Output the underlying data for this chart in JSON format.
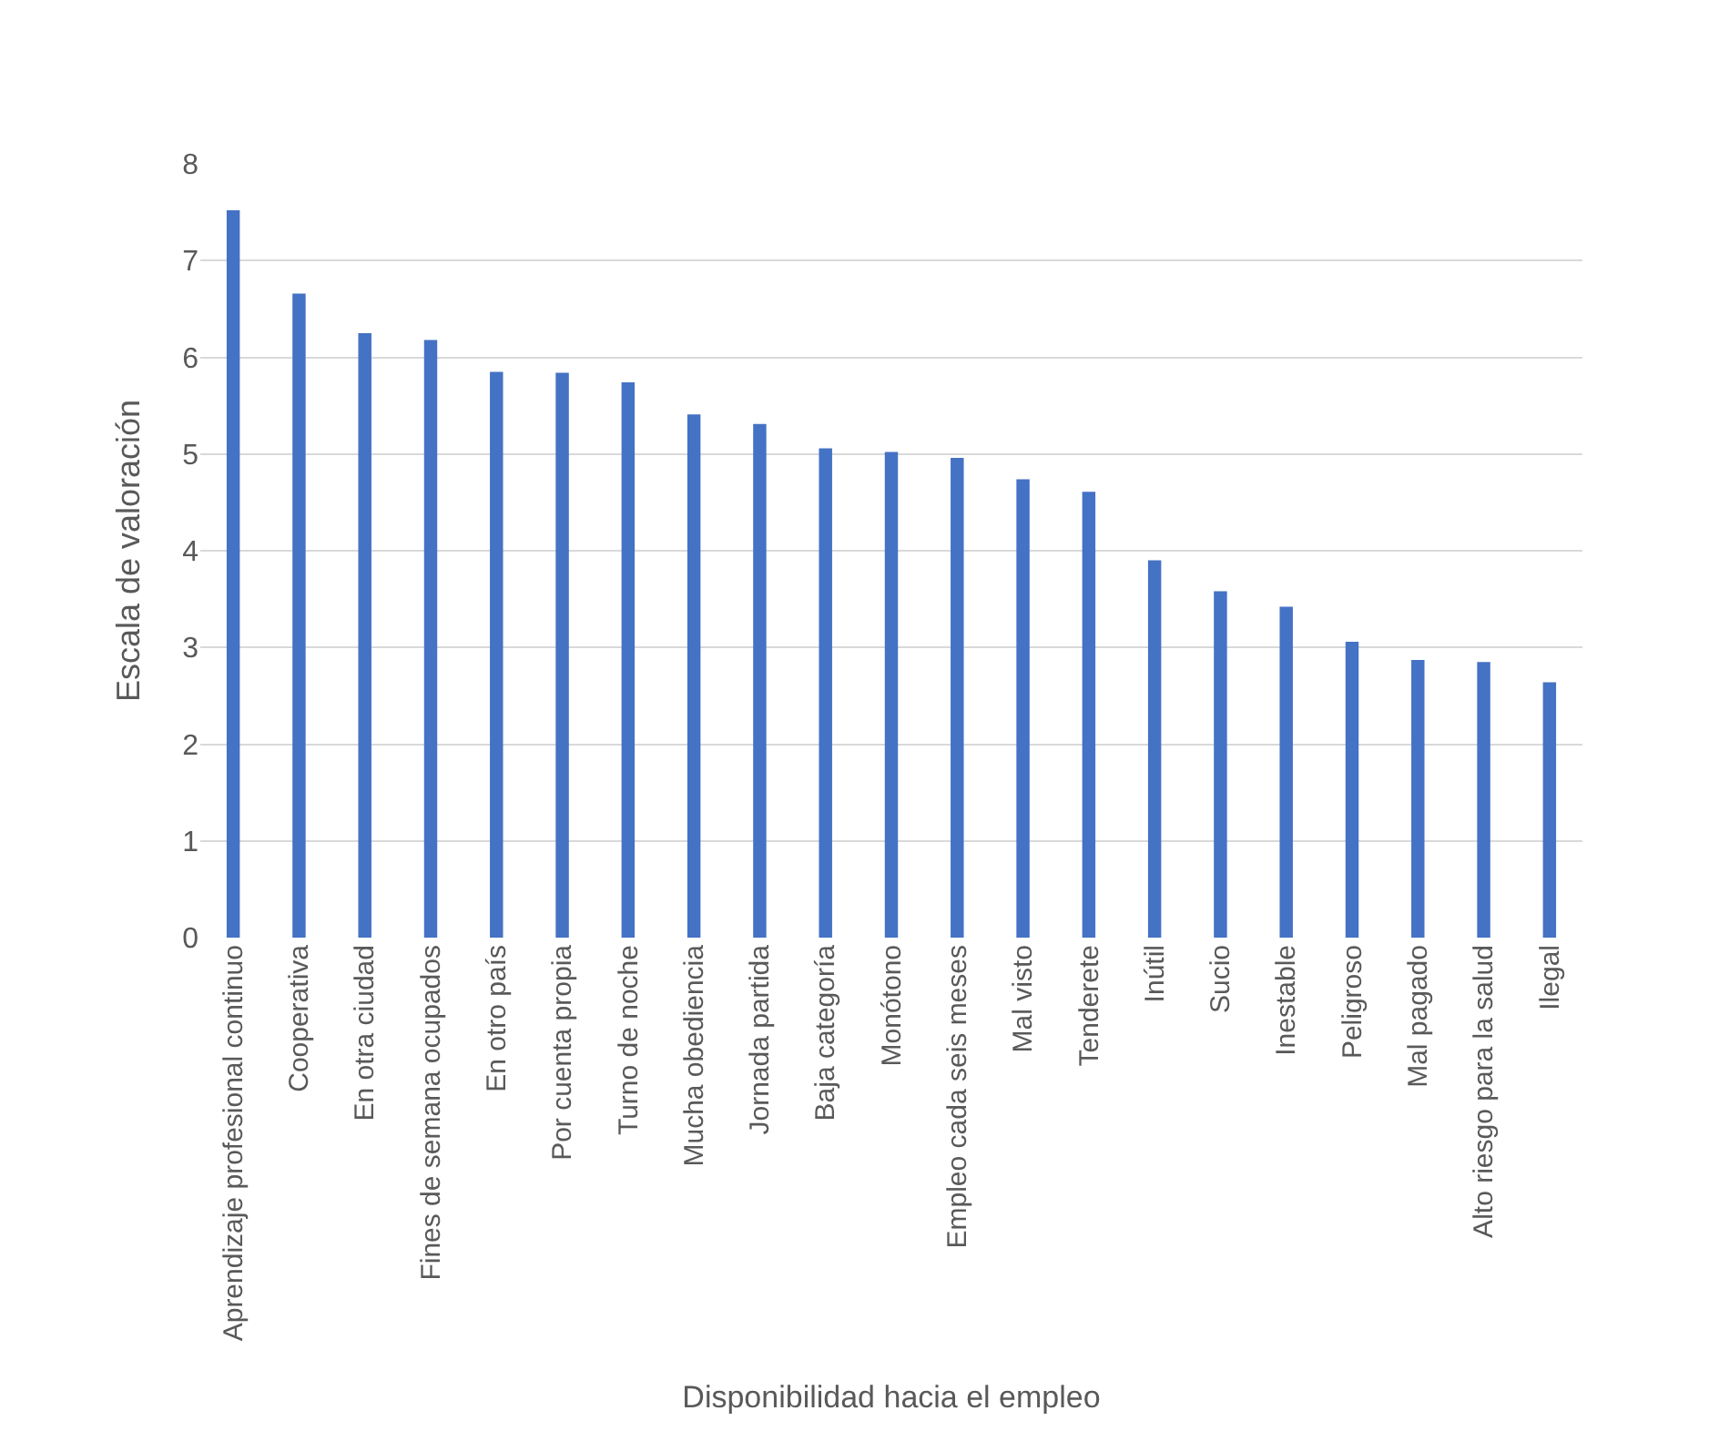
{
  "chart_data": {
    "type": "bar",
    "xlabel": "Disponibilidad hacia el empleo",
    "ylabel": "Escala de valoración",
    "categories": [
      "Aprendizaje profesional continuo",
      "Cooperativa",
      "En otra ciudad",
      "Fines de semana ocupados",
      "En otro país",
      "Por cuenta propia",
      "Turno de noche",
      "Mucha obediencia",
      "Jornada partida",
      "Baja categoría",
      "Monótono",
      "Empleo cada seis meses",
      "Mal visto",
      "Tenderete",
      "Inútil",
      "Sucio",
      "Inestable",
      "Peligroso",
      "Mal pagado",
      "Alto riesgo para la salud",
      "Ilegal"
    ],
    "values": [
      7.52,
      6.66,
      6.25,
      6.18,
      5.85,
      5.84,
      5.74,
      5.41,
      5.31,
      5.06,
      5.02,
      4.96,
      4.74,
      4.61,
      3.9,
      3.58,
      3.42,
      3.06,
      2.87,
      2.85,
      2.64
    ],
    "color": "#4472c4",
    "ylim": [
      0,
      8
    ],
    "yticks": [
      0,
      1,
      2,
      3,
      4,
      5,
      6,
      7,
      8
    ],
    "grid": "y",
    "legend": false
  }
}
